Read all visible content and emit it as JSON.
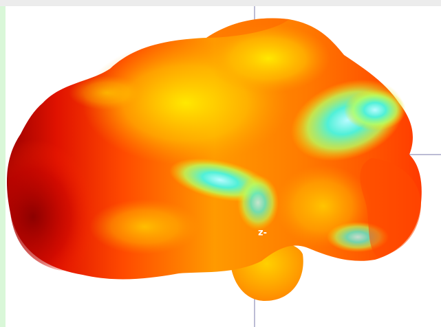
{
  "viewer": {
    "axis_label": "-z",
    "background": "#ffffff",
    "colormap": [
      "#9b0000",
      "#ff2a00",
      "#ff8a00",
      "#ffe000",
      "#c8ff40",
      "#40ffc8",
      "#a6f7ff"
    ]
  }
}
